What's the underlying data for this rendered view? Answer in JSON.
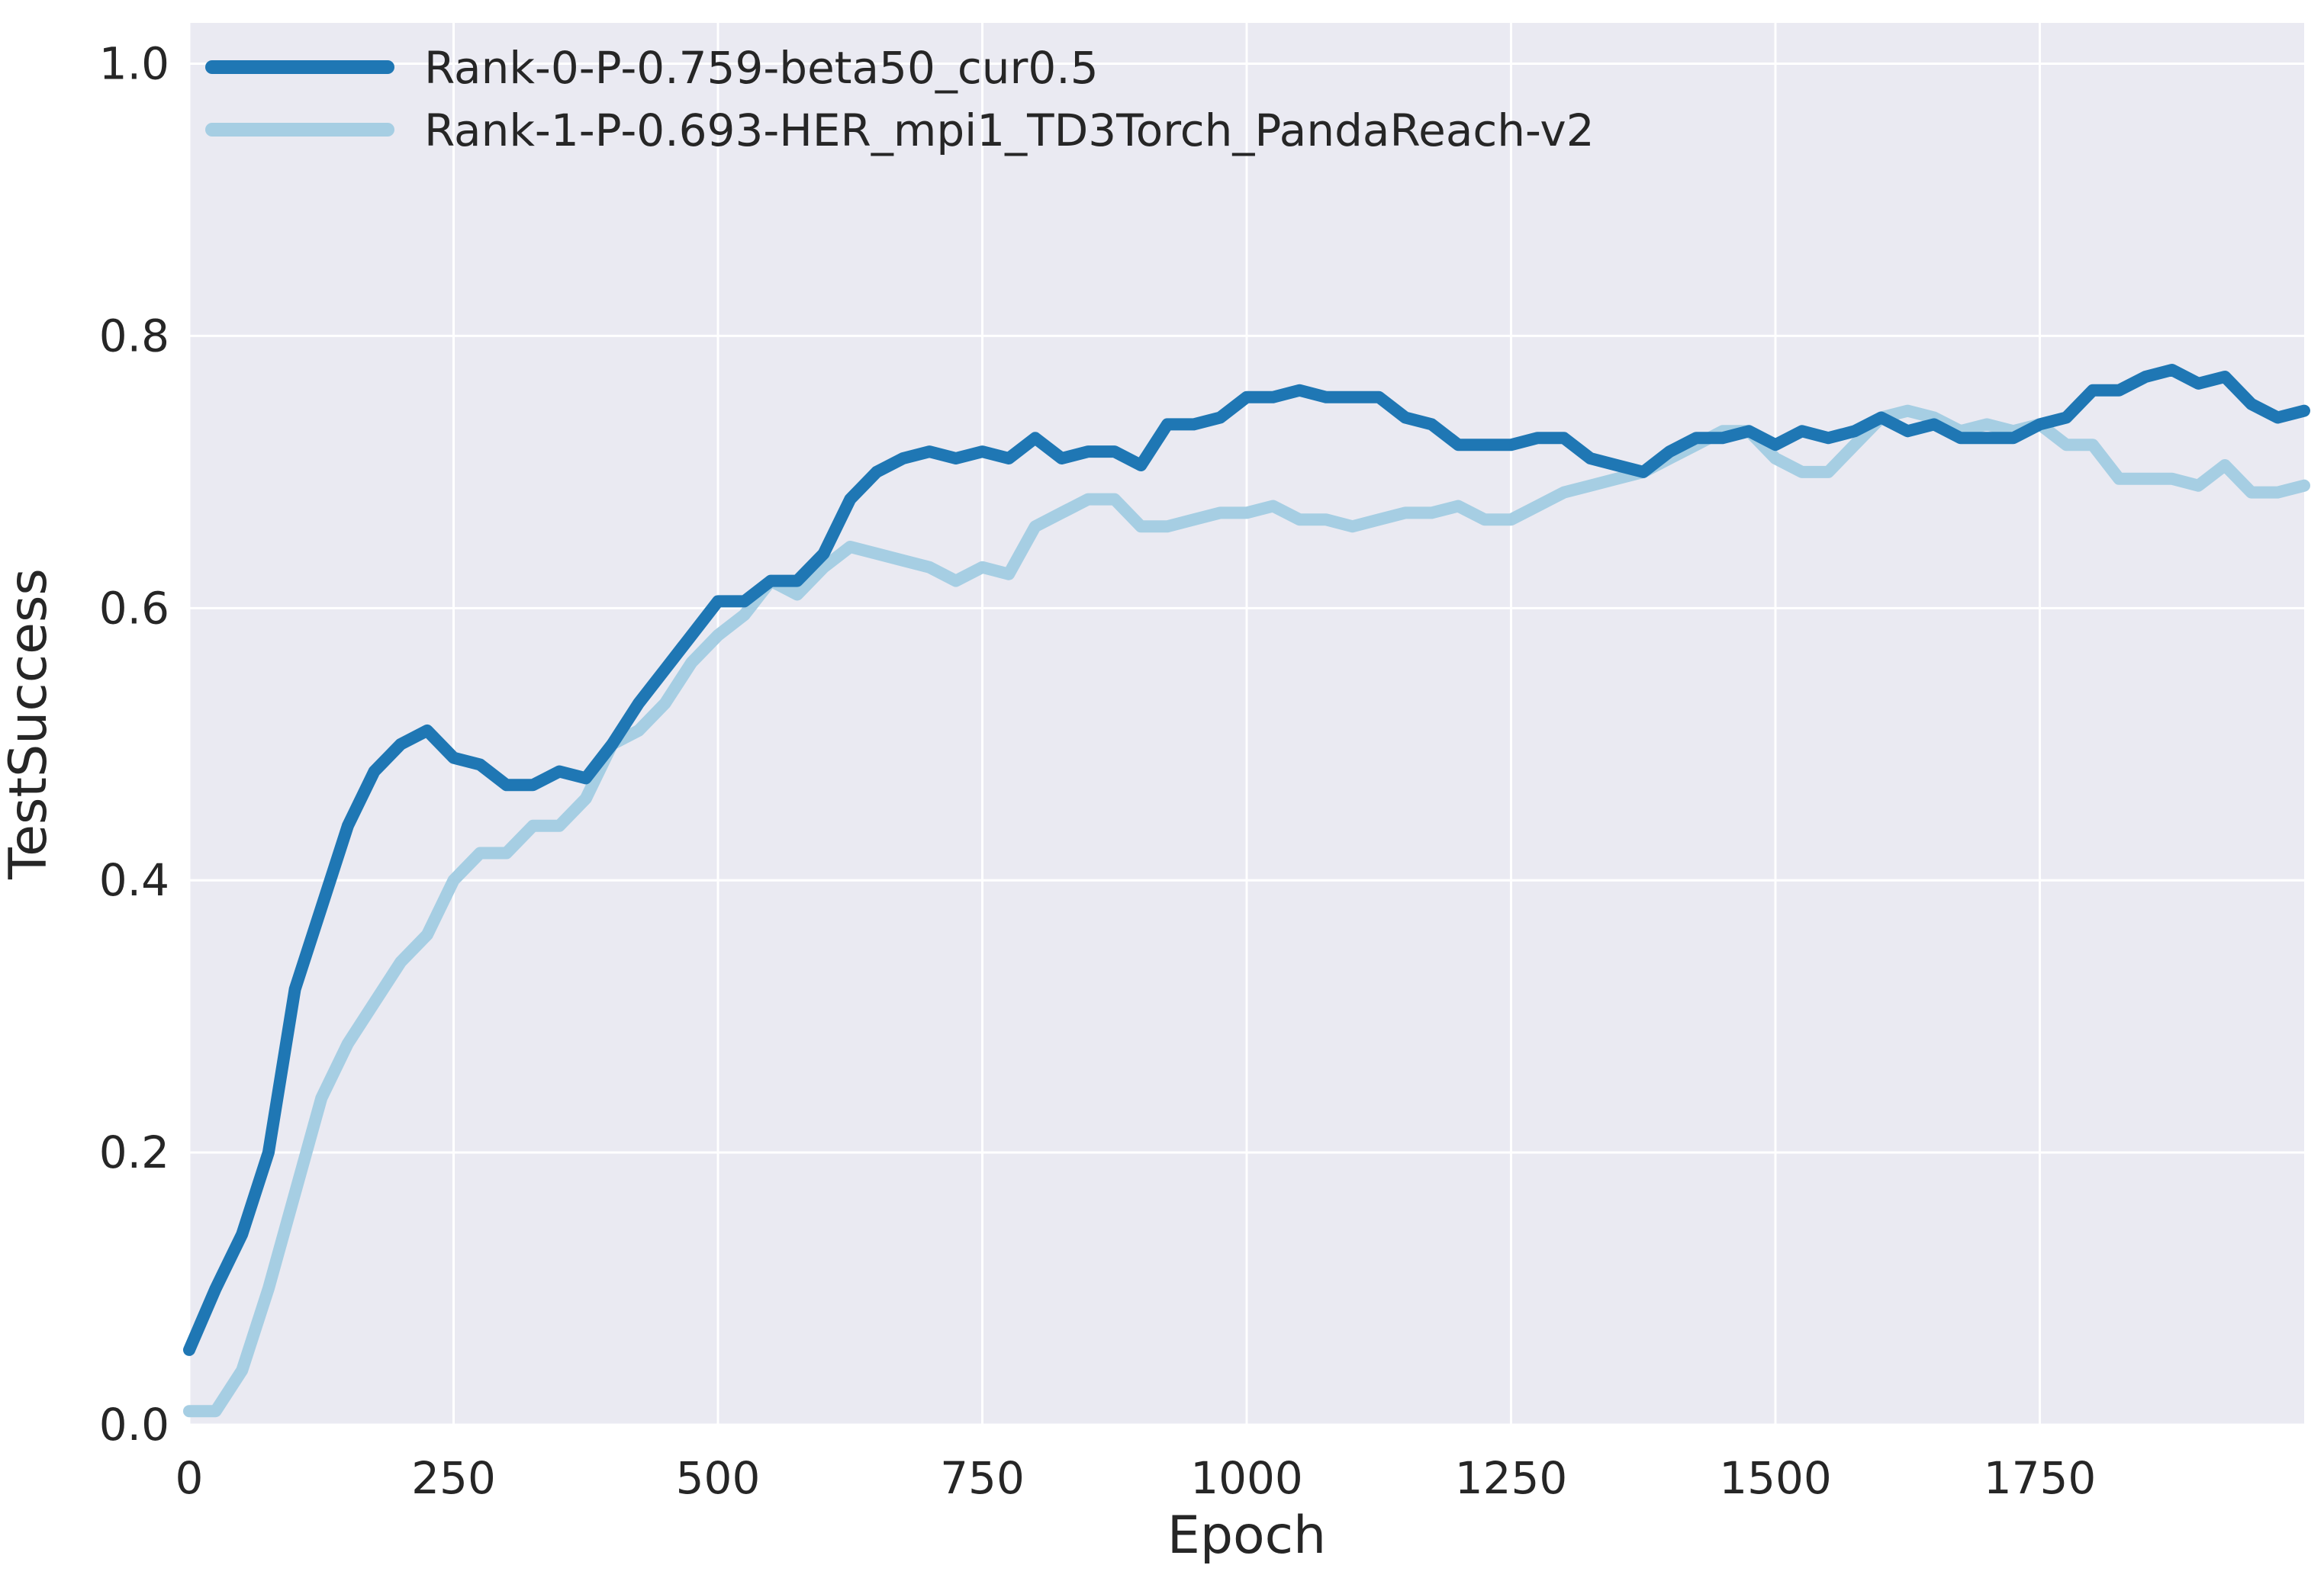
{
  "chart_data": {
    "type": "line",
    "xlabel": "Epoch",
    "ylabel": "TestSuccess",
    "xlim": [
      0,
      2000
    ],
    "ylim": [
      0,
      1.03
    ],
    "xticks": [
      0,
      250,
      500,
      750,
      1000,
      1250,
      1500,
      1750
    ],
    "xtick_labels": [
      "0",
      "250",
      "500",
      "750",
      "1000",
      "1250",
      "1500",
      "1750"
    ],
    "yticks": [
      0.0,
      0.2,
      0.4,
      0.6,
      0.8,
      1.0
    ],
    "ytick_labels": [
      "0.0",
      "0.2",
      "0.4",
      "0.6",
      "0.8",
      "1.0"
    ],
    "grid": true,
    "legend_position": "top-left",
    "colors": {
      "background": "#eaeaf2",
      "grid": "#ffffff"
    },
    "series": [
      {
        "name": "Rank-0-P-0.759-beta50_cur0.5",
        "color": "#1f77b4",
        "x": [
          0,
          25,
          50,
          75,
          100,
          125,
          150,
          175,
          200,
          225,
          250,
          275,
          300,
          325,
          350,
          375,
          400,
          425,
          450,
          475,
          500,
          525,
          550,
          575,
          600,
          625,
          650,
          675,
          700,
          725,
          750,
          775,
          800,
          825,
          850,
          875,
          900,
          925,
          950,
          975,
          1000,
          1025,
          1050,
          1075,
          1100,
          1125,
          1150,
          1175,
          1200,
          1225,
          1250,
          1275,
          1300,
          1325,
          1350,
          1375,
          1400,
          1425,
          1450,
          1475,
          1500,
          1525,
          1550,
          1575,
          1600,
          1625,
          1650,
          1675,
          1700,
          1725,
          1750,
          1775,
          1800,
          1825,
          1850,
          1875,
          1900,
          1925,
          1950,
          1975,
          2000
        ],
        "values": [
          0.055,
          0.1,
          0.14,
          0.2,
          0.32,
          0.38,
          0.44,
          0.48,
          0.5,
          0.51,
          0.49,
          0.485,
          0.47,
          0.47,
          0.48,
          0.475,
          0.5,
          0.53,
          0.555,
          0.58,
          0.605,
          0.605,
          0.62,
          0.62,
          0.64,
          0.68,
          0.7,
          0.71,
          0.715,
          0.71,
          0.715,
          0.71,
          0.725,
          0.71,
          0.715,
          0.715,
          0.705,
          0.735,
          0.735,
          0.74,
          0.755,
          0.755,
          0.76,
          0.755,
          0.755,
          0.755,
          0.74,
          0.735,
          0.72,
          0.72,
          0.72,
          0.725,
          0.725,
          0.71,
          0.705,
          0.7,
          0.715,
          0.725,
          0.725,
          0.73,
          0.72,
          0.73,
          0.725,
          0.73,
          0.74,
          0.73,
          0.735,
          0.725,
          0.725,
          0.725,
          0.735,
          0.74,
          0.76,
          0.76,
          0.77,
          0.775,
          0.765,
          0.77,
          0.75,
          0.74,
          0.745
        ]
      },
      {
        "name": "Rank-1-P-0.693-HER_mpi1_TD3Torch_PandaReach-v2",
        "color": "#a6cee3",
        "x": [
          0,
          25,
          50,
          75,
          100,
          125,
          150,
          175,
          200,
          225,
          250,
          275,
          300,
          325,
          350,
          375,
          400,
          425,
          450,
          475,
          500,
          525,
          550,
          575,
          600,
          625,
          650,
          675,
          700,
          725,
          750,
          775,
          800,
          825,
          850,
          875,
          900,
          925,
          950,
          975,
          1000,
          1025,
          1050,
          1075,
          1100,
          1125,
          1150,
          1175,
          1200,
          1225,
          1250,
          1275,
          1300,
          1325,
          1350,
          1375,
          1400,
          1425,
          1450,
          1475,
          1500,
          1525,
          1550,
          1575,
          1600,
          1625,
          1650,
          1675,
          1700,
          1725,
          1750,
          1775,
          1800,
          1825,
          1850,
          1875,
          1900,
          1925,
          1950,
          1975,
          2000
        ],
        "values": [
          0.01,
          0.01,
          0.04,
          0.1,
          0.17,
          0.24,
          0.28,
          0.31,
          0.34,
          0.36,
          0.4,
          0.42,
          0.42,
          0.44,
          0.44,
          0.46,
          0.5,
          0.51,
          0.53,
          0.56,
          0.58,
          0.595,
          0.62,
          0.61,
          0.63,
          0.645,
          0.64,
          0.635,
          0.63,
          0.62,
          0.63,
          0.625,
          0.66,
          0.67,
          0.68,
          0.68,
          0.66,
          0.66,
          0.665,
          0.67,
          0.67,
          0.675,
          0.665,
          0.665,
          0.66,
          0.665,
          0.67,
          0.67,
          0.675,
          0.665,
          0.665,
          0.675,
          0.685,
          0.69,
          0.695,
          0.7,
          0.71,
          0.72,
          0.73,
          0.73,
          0.71,
          0.7,
          0.7,
          0.72,
          0.74,
          0.745,
          0.74,
          0.73,
          0.735,
          0.73,
          0.735,
          0.72,
          0.72,
          0.695,
          0.695,
          0.695,
          0.69,
          0.705,
          0.685,
          0.685,
          0.69
        ]
      }
    ]
  }
}
